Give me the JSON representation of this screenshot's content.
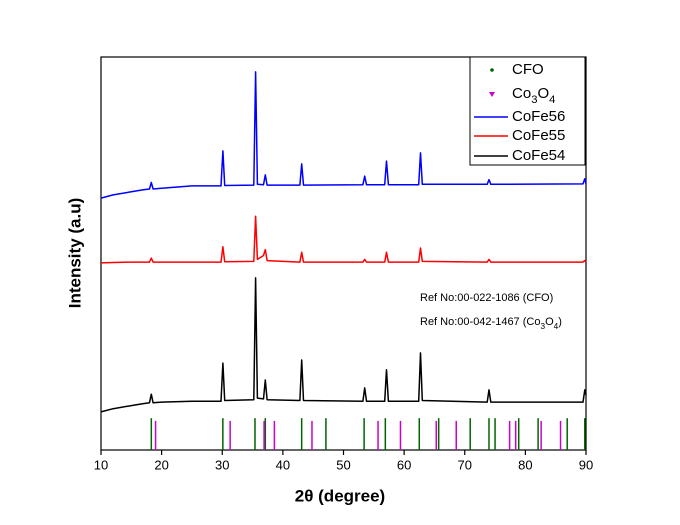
{
  "chart_data": {
    "type": "line",
    "xlabel": "2θ (degree)",
    "ylabel": "Intensity (a.u)",
    "xlim": [
      10,
      90
    ],
    "xticks": [
      10,
      20,
      30,
      40,
      50,
      60,
      70,
      80,
      90
    ],
    "ylim": [
      0,
      100
    ],
    "x": [
      10,
      12,
      15,
      17,
      18.0,
      18.3,
      18.6,
      20,
      25,
      29.8,
      30.1,
      30.4,
      35.2,
      35.5,
      35.8,
      36.8,
      37.1,
      37.4,
      42.8,
      43.1,
      43.4,
      53.2,
      53.5,
      53.8,
      56.8,
      57.1,
      57.4,
      62.4,
      62.7,
      63.0,
      73.7,
      74.0,
      74.3,
      89.5,
      89.8,
      90
    ],
    "series": [
      {
        "name": "CoFe56",
        "color": "#0000ff",
        "values": [
          64.1,
          64.9,
          65.7,
          66.2,
          66.4,
          68.1,
          66.4,
          66.6,
          67.2,
          67.2,
          76.1,
          67.3,
          67.4,
          96.2,
          67.6,
          67.5,
          70,
          67.4,
          67.4,
          72.8,
          67.4,
          67.5,
          69.7,
          67.5,
          67.5,
          73.5,
          67.5,
          67.5,
          75.6,
          67.6,
          67.6,
          68.8,
          67.6,
          67.7,
          69,
          67.7
        ]
      },
      {
        "name": "CoFe55",
        "color": "#ff0000",
        "values": [
          47.6,
          47.7,
          47.8,
          47.8,
          47.8,
          48.8,
          47.8,
          47.8,
          47.8,
          47.8,
          51.7,
          47.9,
          48,
          59.5,
          48.5,
          49.5,
          51,
          48.2,
          47.8,
          50.3,
          47.8,
          47.8,
          48.5,
          47.8,
          47.8,
          50.3,
          47.8,
          47.8,
          51.4,
          48,
          47.8,
          48.5,
          47.8,
          47.8,
          48.2,
          47.8
        ]
      },
      {
        "name": "CoFe54",
        "color": "#000000",
        "values": [
          9.7,
          10.5,
          11.3,
          11.8,
          12,
          14.2,
          12,
          12.2,
          12.4,
          12.4,
          22.1,
          12.6,
          12.8,
          43.8,
          13.2,
          13,
          17.8,
          12.8,
          12.6,
          22.9,
          12.6,
          12.4,
          15.8,
          12.4,
          12.4,
          20.4,
          12.4,
          12.4,
          24.7,
          12.6,
          12.2,
          15.3,
          12.2,
          12.2,
          15.3,
          14
        ]
      }
    ],
    "reference_lines": [
      {
        "name": "CFO",
        "color": "#006400",
        "marker": "dot",
        "x": [
          18.3,
          30.1,
          35.4,
          37.1,
          43.1,
          47.1,
          53.4,
          56.9,
          62.5,
          65.7,
          70.9,
          74.0,
          75.0,
          78.9,
          82.1,
          86.9,
          89.8
        ],
        "values": [
          8.1,
          8.1,
          8.1,
          8.1,
          8.1,
          8.1,
          8.1,
          8.1,
          8.1,
          8.1,
          8.1,
          8.1,
          8.1,
          8.1,
          8.1,
          8.1,
          8.1
        ]
      },
      {
        "name": "Co3O4",
        "color": "#cc00cc",
        "marker": "triangle",
        "x": [
          19.0,
          31.3,
          36.9,
          38.6,
          44.8,
          55.7,
          59.4,
          65.3,
          68.6,
          77.4,
          78.4,
          82.6,
          85.8
        ],
        "values": [
          7.4,
          7.4,
          7.4,
          7.4,
          7.4,
          7.4,
          7.4,
          7.4,
          7.4,
          7.4,
          7.4,
          7.4,
          7.4
        ]
      }
    ],
    "annotations": [
      "Ref No:00-022-1086 (CFO)",
      "Ref No:00-042-1467 (Co3O4)"
    ]
  }
}
